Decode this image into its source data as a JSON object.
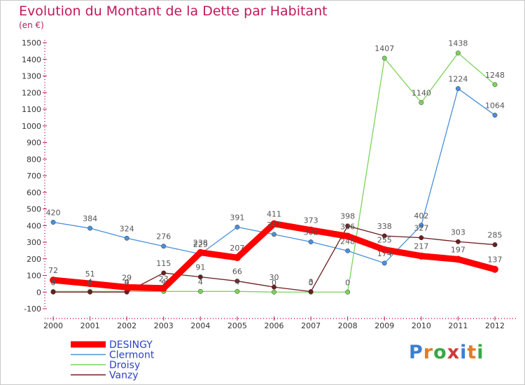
{
  "header": {
    "title": "Evolution du Montant de la Dette par Habitant",
    "unit": "(en €)"
  },
  "logo": {
    "text": "Proxiti",
    "colors": [
      "#3b7fd4",
      "#e57c23",
      "#38a845",
      "#d13a3a",
      "#3b7fd4",
      "#e57c23",
      "#38a845"
    ]
  },
  "chart_data": {
    "type": "line",
    "title": "Evolution du Montant de la Dette par Habitant",
    "ylabel": "(en €)",
    "xlabel": "",
    "x": [
      "2000",
      "2001",
      "2002",
      "2003",
      "2004",
      "2005",
      "2006",
      "2007",
      "2008",
      "2009",
      "2010",
      "2011",
      "2012"
    ],
    "ylim": [
      -100,
      1500
    ],
    "yticks": [
      -100,
      0,
      100,
      200,
      300,
      400,
      500,
      600,
      700,
      800,
      900,
      1000,
      1100,
      1200,
      1300,
      1400,
      1500
    ],
    "grid": false,
    "legend_position": "bottom-left",
    "series": [
      {
        "name": "DESINGY",
        "color": "#ff0000",
        "values": [
          72,
          51,
          29,
          23,
          238,
          207,
          411,
          373,
          336,
          255,
          217,
          197,
          137
        ]
      },
      {
        "name": "Clermont",
        "color": "#4a90d9",
        "values": [
          420,
          384,
          324,
          276,
          229,
          391,
          347,
          302,
          248,
          174,
          402,
          1224,
          1064
        ]
      },
      {
        "name": "Droisy",
        "color": "#7dd35a",
        "values": [
          4,
          4,
          4,
          4,
          4,
          4,
          0,
          0,
          0,
          1407,
          1140,
          1438,
          1248
        ]
      },
      {
        "name": "Vanzy",
        "color": "#6b1e1e",
        "values": [
          0,
          0,
          0,
          115,
          91,
          66,
          30,
          3,
          398,
          338,
          327,
          303,
          285
        ]
      }
    ]
  }
}
